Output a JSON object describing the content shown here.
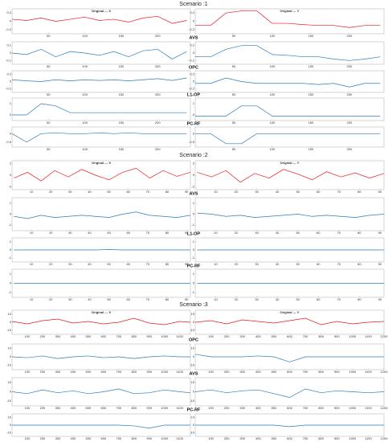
{
  "sections": [
    {
      "title": "Scenario :1",
      "row_labels": [
        "AVS",
        "OPC",
        "L1-OP",
        "PC-RF"
      ]
    },
    {
      "title": "Scenario :2",
      "row_labels": [
        "AVS",
        "L1-OP",
        "PC-RF"
      ]
    },
    {
      "title": "Scenario :3",
      "row_labels": [
        "OPC",
        "AVS",
        "PC-RF"
      ]
    }
  ],
  "chart_data": [
    {
      "type": "line",
      "title": "Original --- X",
      "x": [
        0,
        20,
        40,
        60,
        80,
        100,
        120,
        140,
        160,
        180,
        200,
        220,
        240
      ],
      "values": [
        0.05,
        0.02,
        0.08,
        0,
        0.05,
        0.1,
        0.02,
        0.05,
        -0.02,
        0.08,
        0.12,
        -0.05,
        0.02
      ],
      "color": "#e8191c",
      "xlim": [
        0,
        245
      ],
      "xticks": [
        50,
        100,
        150,
        200
      ],
      "ylim": [
        -0.3,
        0.3
      ],
      "yticks": [
        -0.2,
        0,
        0.2
      ]
    },
    {
      "type": "line",
      "title": "Original --- Y",
      "x": [
        0,
        20,
        40,
        60,
        80,
        100,
        120,
        140,
        160,
        180,
        200,
        220,
        240
      ],
      "values": [
        -0.1,
        -0.1,
        0.2,
        0.25,
        0.25,
        -0.05,
        -0.05,
        -0.08,
        -0.1,
        -0.1,
        -0.15,
        -0.1,
        -0.1
      ],
      "color": "#e8191c",
      "xlim": [
        0,
        245
      ],
      "xticks": [
        50,
        100,
        150,
        200
      ],
      "ylim": [
        -0.3,
        0.3
      ],
      "yticks": [
        -0.2,
        0,
        0.2
      ]
    },
    {
      "type": "line",
      "x": [
        0,
        20,
        40,
        60,
        80,
        100,
        120,
        140,
        160,
        180,
        200,
        220,
        240
      ],
      "values": [
        0,
        -0.02,
        0.05,
        -0.05,
        0.02,
        0,
        -0.03,
        0.02,
        -0.05,
        0.03,
        0.05,
        -0.08,
        0.02
      ],
      "color": "#2b7bba",
      "xlim": [
        0,
        245
      ],
      "xticks": [
        50,
        100,
        150,
        200
      ],
      "ylim": [
        -0.15,
        0.15
      ],
      "yticks": [
        -0.1,
        0,
        0.1
      ]
    },
    {
      "type": "line",
      "x": [
        0,
        20,
        40,
        60,
        80,
        100,
        120,
        140,
        160,
        180,
        200,
        220,
        240
      ],
      "values": [
        -0.05,
        -0.05,
        0.05,
        0.1,
        0.1,
        -0.02,
        -0.03,
        -0.05,
        -0.05,
        -0.08,
        -0.1,
        -0.08,
        -0.05
      ],
      "color": "#2b7bba",
      "xlim": [
        0,
        245
      ],
      "xticks": [
        50,
        100,
        150,
        200
      ],
      "ylim": [
        -0.15,
        0.15
      ],
      "yticks": [
        -0.1,
        0,
        0.1
      ]
    },
    {
      "type": "line",
      "x": [
        0,
        20,
        40,
        60,
        80,
        100,
        120,
        140,
        160,
        180,
        200,
        220,
        240
      ],
      "values": [
        0.05,
        0.02,
        0,
        0.05,
        0.02,
        0.05,
        0.03,
        0.05,
        0.02,
        0.05,
        0.08,
        0.03,
        0.1
      ],
      "color": "#2b7bba",
      "xlim": [
        0,
        245
      ],
      "xticks": [
        50,
        100,
        150,
        200
      ],
      "ylim": [
        -0.3,
        0.3
      ],
      "yticks": [
        -0.2,
        0,
        0.2
      ]
    },
    {
      "type": "line",
      "x": [
        0,
        20,
        40,
        60,
        80,
        100,
        120,
        140,
        160,
        180,
        200,
        220,
        240
      ],
      "values": [
        -0.05,
        -0.05,
        0.1,
        0,
        -0.05,
        -0.05,
        -0.05,
        -0.05,
        -0.08,
        -0.05,
        -0.15,
        -0.05,
        -0.05
      ],
      "color": "#2b7bba",
      "xlim": [
        0,
        245
      ],
      "xticks": [
        50,
        100,
        150,
        200
      ],
      "ylim": [
        -0.3,
        0.3
      ],
      "yticks": [
        -0.2,
        0,
        0.2
      ]
    },
    {
      "type": "line",
      "x": [
        0,
        20,
        40,
        60,
        80,
        100,
        120,
        140,
        160,
        180,
        200,
        220,
        240
      ],
      "values": [
        0,
        0,
        1,
        0.8,
        0.2,
        0.2,
        0.2,
        0.2,
        0.2,
        0.2,
        0.2,
        0.2,
        0.2
      ],
      "color": "#2b7bba",
      "xlim": [
        0,
        245
      ],
      "xticks": [
        50,
        100,
        150,
        200
      ],
      "ylim": [
        -0.5,
        1.5
      ],
      "yticks": [
        0,
        1
      ]
    },
    {
      "type": "line",
      "x": [
        0,
        20,
        40,
        60,
        80,
        100,
        120,
        140,
        160,
        180,
        200,
        220,
        240
      ],
      "values": [
        -0.1,
        -0.1,
        -0.1,
        0.8,
        0.8,
        -0.1,
        -0.1,
        -0.1,
        -0.1,
        -0.1,
        -0.1,
        -0.1,
        -0.1
      ],
      "color": "#2b7bba",
      "xlim": [
        0,
        245
      ],
      "xticks": [
        50,
        100,
        150,
        200
      ],
      "ylim": [
        -0.5,
        1.5
      ],
      "yticks": [
        0,
        1
      ]
    },
    {
      "type": "line",
      "x": [
        0,
        20,
        40,
        60,
        80,
        100,
        120,
        140,
        160,
        180,
        200,
        220,
        240
      ],
      "values": [
        0,
        -0.5,
        0,
        0.05,
        0,
        0,
        0.05,
        0,
        0.05,
        0,
        0,
        0,
        0
      ],
      "color": "#2b7bba",
      "xlim": [
        0,
        245
      ],
      "xticks": [
        50,
        100,
        150,
        200
      ],
      "ylim": [
        -0.8,
        0.4
      ],
      "yticks": [
        -0.5,
        0
      ]
    },
    {
      "type": "line",
      "x": [
        0,
        20,
        40,
        60,
        80,
        100,
        120,
        140,
        160,
        180,
        200,
        220,
        240
      ],
      "values": [
        0,
        0,
        -0.6,
        -0.6,
        0,
        0,
        0,
        0,
        0,
        0,
        0,
        0,
        0
      ],
      "color": "#2b7bba",
      "xlim": [
        0,
        245
      ],
      "xticks": [
        50,
        100,
        150,
        200
      ],
      "ylim": [
        -0.8,
        0.4
      ],
      "yticks": [
        -0.5,
        0
      ]
    },
    {
      "type": "line",
      "title": "Original --- X",
      "x": [
        1,
        8,
        15,
        22,
        29,
        36,
        43,
        50,
        57,
        64,
        71,
        78,
        85,
        92
      ],
      "values": [
        -0.5,
        0.5,
        -1,
        0.8,
        -0.3,
        1,
        0,
        -0.8,
        0.5,
        1.2,
        -0.5,
        0.8,
        -0.2,
        0.5
      ],
      "color": "#e8191c",
      "xlim": [
        0,
        92
      ],
      "xticks": [
        10,
        20,
        30,
        40,
        50,
        60,
        70,
        80,
        90
      ],
      "ylim": [
        -2.5,
        2.5
      ],
      "yticks": [
        -2,
        0,
        2
      ]
    },
    {
      "type": "line",
      "title": "Original --- Y",
      "x": [
        1,
        8,
        15,
        22,
        29,
        36,
        43,
        50,
        57,
        64,
        71,
        78,
        85,
        92
      ],
      "values": [
        0.5,
        -0.3,
        0.8,
        -1.2,
        0.3,
        -0.5,
        1,
        0.2,
        -0.8,
        0.6,
        -0.3,
        0.4,
        -0.5,
        0.3
      ],
      "color": "#e8191c",
      "xlim": [
        0,
        92
      ],
      "xticks": [
        10,
        20,
        30,
        40,
        50,
        60,
        70,
        80,
        90
      ],
      "ylim": [
        -2.5,
        2.5
      ],
      "yticks": [
        -2,
        0,
        2
      ]
    },
    {
      "type": "line",
      "x": [
        1,
        8,
        15,
        22,
        29,
        36,
        43,
        50,
        57,
        64,
        71,
        78,
        85,
        92
      ],
      "values": [
        -0.2,
        -0.4,
        -0.1,
        -0.3,
        -0.2,
        -0.1,
        -0.2,
        -0.3,
        0,
        0.2,
        -0.1,
        -0.2,
        -0.3,
        -0.1
      ],
      "color": "#2b7bba",
      "xlim": [
        0,
        92
      ],
      "xticks": [
        10,
        20,
        30,
        40,
        50,
        60,
        70,
        80,
        90
      ],
      "ylim": [
        -1.5,
        1.5
      ],
      "yticks": [
        -1,
        0,
        1
      ]
    },
    {
      "type": "line",
      "x": [
        1,
        8,
        15,
        22,
        29,
        36,
        43,
        50,
        57,
        64,
        71,
        78,
        85,
        92
      ],
      "values": [
        0.1,
        0,
        -0.2,
        -0.1,
        -0.3,
        -0.2,
        -0.1,
        0,
        -0.2,
        -0.1,
        -0.2,
        -0.3,
        -0.1,
        0
      ],
      "color": "#2b7bba",
      "xlim": [
        0,
        92
      ],
      "xticks": [
        10,
        20,
        30,
        40,
        50,
        60,
        70,
        80,
        90
      ],
      "ylim": [
        -1.5,
        1.5
      ],
      "yticks": [
        -1,
        0,
        1
      ]
    },
    {
      "type": "line",
      "x": [
        1,
        8,
        15,
        22,
        29,
        36,
        43,
        50,
        57,
        64,
        71,
        78,
        85,
        92
      ],
      "values": [
        0,
        0,
        0,
        0,
        0,
        0,
        0,
        0.05,
        0,
        0,
        0,
        0,
        0,
        0
      ],
      "color": "#2b7bba",
      "xlim": [
        0,
        92
      ],
      "xticks": [
        10,
        20,
        30,
        40,
        50,
        60,
        70,
        80,
        90
      ],
      "ylim": [
        -1.5,
        1.5
      ],
      "yticks": [
        -1,
        0,
        1
      ]
    },
    {
      "type": "line",
      "x": [
        1,
        8,
        15,
        22,
        29,
        36,
        43,
        50,
        57,
        64,
        71,
        78,
        85,
        92
      ],
      "values": [
        0,
        0,
        0,
        0,
        0,
        0,
        0,
        0,
        0,
        0,
        0,
        0,
        0,
        0
      ],
      "color": "#2b7bba",
      "xlim": [
        0,
        92
      ],
      "xticks": [
        10,
        20,
        30,
        40,
        50,
        60,
        70,
        80,
        90
      ],
      "ylim": [
        -1.5,
        1.5
      ],
      "yticks": [
        -1,
        0,
        1
      ]
    },
    {
      "type": "line",
      "x": [
        1,
        8,
        15,
        22,
        29,
        36,
        43,
        50,
        57,
        64,
        71,
        78,
        85,
        92
      ],
      "values": [
        0,
        0,
        0,
        0,
        0,
        0,
        0,
        0,
        0,
        0,
        0,
        0,
        0,
        0
      ],
      "color": "#2b7bba",
      "xlim": [
        0,
        92
      ],
      "xticks": [
        10,
        20,
        30,
        40,
        50,
        60,
        70,
        80,
        90
      ],
      "ylim": [
        -1.5,
        1.5
      ],
      "yticks": [
        -1,
        0,
        1
      ]
    },
    {
      "type": "line",
      "x": [
        1,
        8,
        15,
        22,
        29,
        36,
        43,
        50,
        57,
        64,
        71,
        78,
        85,
        92
      ],
      "values": [
        0,
        0,
        0,
        0,
        0,
        0,
        0,
        0,
        0,
        0,
        0,
        0,
        0,
        0
      ],
      "color": "#2b7bba",
      "xlim": [
        0,
        92
      ],
      "xticks": [
        10,
        20,
        30,
        40,
        50,
        60,
        70,
        80,
        90
      ],
      "ylim": [
        -1.5,
        1.5
      ],
      "yticks": [
        -1,
        0,
        1
      ]
    },
    {
      "type": "line",
      "title": "Original --- X",
      "x": [
        0,
        100,
        200,
        300,
        400,
        500,
        600,
        700,
        800,
        900,
        1000,
        1100,
        1170
      ],
      "values": [
        1,
        -2,
        2,
        4,
        -1,
        1,
        -2,
        0,
        5,
        -1,
        -3,
        1,
        0
      ],
      "color": "#e8191c",
      "xlim": [
        0,
        1170
      ],
      "xticks": [
        100,
        200,
        300,
        400,
        500,
        600,
        700,
        800,
        900,
        1000,
        1100
      ],
      "ylim": [
        -15,
        15
      ],
      "yticks": [
        -10,
        0,
        10
      ]
    },
    {
      "type": "line",
      "title": "Original --- Y",
      "x": [
        0,
        100,
        200,
        300,
        400,
        500,
        600,
        700,
        800,
        900,
        1000,
        1100,
        1200
      ],
      "values": [
        0,
        2,
        -2,
        3,
        1,
        -1,
        2,
        5,
        -3,
        1,
        -2,
        0,
        1
      ],
      "color": "#e8191c",
      "xlim": [
        0,
        1200
      ],
      "xticks": [
        100,
        200,
        300,
        400,
        500,
        600,
        700,
        800,
        900,
        1000,
        1100,
        1200
      ],
      "ylim": [
        -15,
        15
      ],
      "yticks": [
        -10,
        0,
        10
      ]
    },
    {
      "type": "line",
      "x": [
        0,
        100,
        200,
        300,
        400,
        500,
        600,
        700,
        800,
        900,
        1000,
        1100,
        1170
      ],
      "values": [
        0,
        -1,
        1,
        -2,
        0,
        1,
        -1,
        0,
        -2,
        0,
        1,
        0,
        0
      ],
      "color": "#2b7bba",
      "xlim": [
        0,
        1170
      ],
      "xticks": [
        100,
        200,
        300,
        400,
        500,
        600,
        700,
        800,
        900,
        1000,
        1100
      ],
      "ylim": [
        -15,
        15
      ],
      "yticks": [
        -10,
        0,
        10
      ]
    },
    {
      "type": "line",
      "x": [
        0,
        100,
        200,
        300,
        400,
        500,
        600,
        700,
        800,
        900,
        1000,
        1100,
        1200
      ],
      "values": [
        3,
        0,
        0,
        0,
        1,
        0,
        -6,
        0,
        0,
        0,
        0,
        0,
        0
      ],
      "color": "#2b7bba",
      "xlim": [
        0,
        1200
      ],
      "xticks": [
        100,
        200,
        300,
        400,
        500,
        600,
        700,
        800,
        900,
        1000,
        1100,
        1200
      ],
      "ylim": [
        -15,
        15
      ],
      "yticks": [
        -10,
        0,
        10
      ]
    },
    {
      "type": "line",
      "x": [
        0,
        100,
        200,
        300,
        400,
        500,
        600,
        700,
        800,
        900,
        1000,
        1100,
        1170
      ],
      "values": [
        0,
        -2,
        2,
        -1,
        1,
        -2,
        0,
        3,
        -2,
        -1,
        2,
        0,
        -1
      ],
      "color": "#2b7bba",
      "xlim": [
        0,
        1170
      ],
      "xticks": [
        100,
        200,
        300,
        400,
        500,
        600,
        700,
        800,
        900,
        1000,
        1100
      ],
      "ylim": [
        -15,
        15
      ],
      "yticks": [
        -10,
        0,
        10
      ]
    },
    {
      "type": "line",
      "x": [
        0,
        100,
        200,
        300,
        400,
        500,
        600,
        700,
        800,
        900,
        1000,
        1100,
        1200
      ],
      "values": [
        0,
        2,
        -1,
        1,
        2,
        -2,
        -6,
        3,
        -1,
        1,
        0,
        -1,
        0
      ],
      "color": "#2b7bba",
      "xlim": [
        0,
        1200
      ],
      "xticks": [
        100,
        200,
        300,
        400,
        500,
        600,
        700,
        800,
        900,
        1000,
        1100,
        1200
      ],
      "ylim": [
        -15,
        15
      ],
      "yticks": [
        -10,
        0,
        10
      ]
    },
    {
      "type": "line",
      "x": [
        0,
        100,
        200,
        300,
        400,
        500,
        600,
        700,
        800,
        900,
        1000,
        1100,
        1170
      ],
      "values": [
        0,
        0,
        0,
        0,
        0,
        0,
        0,
        0,
        -1,
        -4,
        0,
        0,
        0
      ],
      "color": "#2b7bba",
      "xlim": [
        0,
        1170
      ],
      "xticks": [
        100,
        200,
        300,
        400,
        500,
        600,
        700,
        800,
        900,
        1000,
        1100
      ],
      "ylim": [
        -15,
        15
      ],
      "yticks": [
        -10,
        0,
        10
      ]
    },
    {
      "type": "line",
      "x": [
        0,
        100,
        200,
        300,
        400,
        500,
        600,
        700,
        800,
        900,
        1000,
        1100,
        1200
      ],
      "values": [
        0,
        0,
        0,
        0,
        0,
        0,
        -2,
        0,
        0,
        0,
        0,
        0,
        0
      ],
      "color": "#2b7bba",
      "xlim": [
        0,
        1200
      ],
      "xticks": [
        100,
        200,
        300,
        400,
        500,
        600,
        700,
        800,
        900,
        1000,
        1100,
        1200
      ],
      "ylim": [
        -15,
        15
      ],
      "yticks": [
        -10,
        0,
        10
      ]
    }
  ]
}
